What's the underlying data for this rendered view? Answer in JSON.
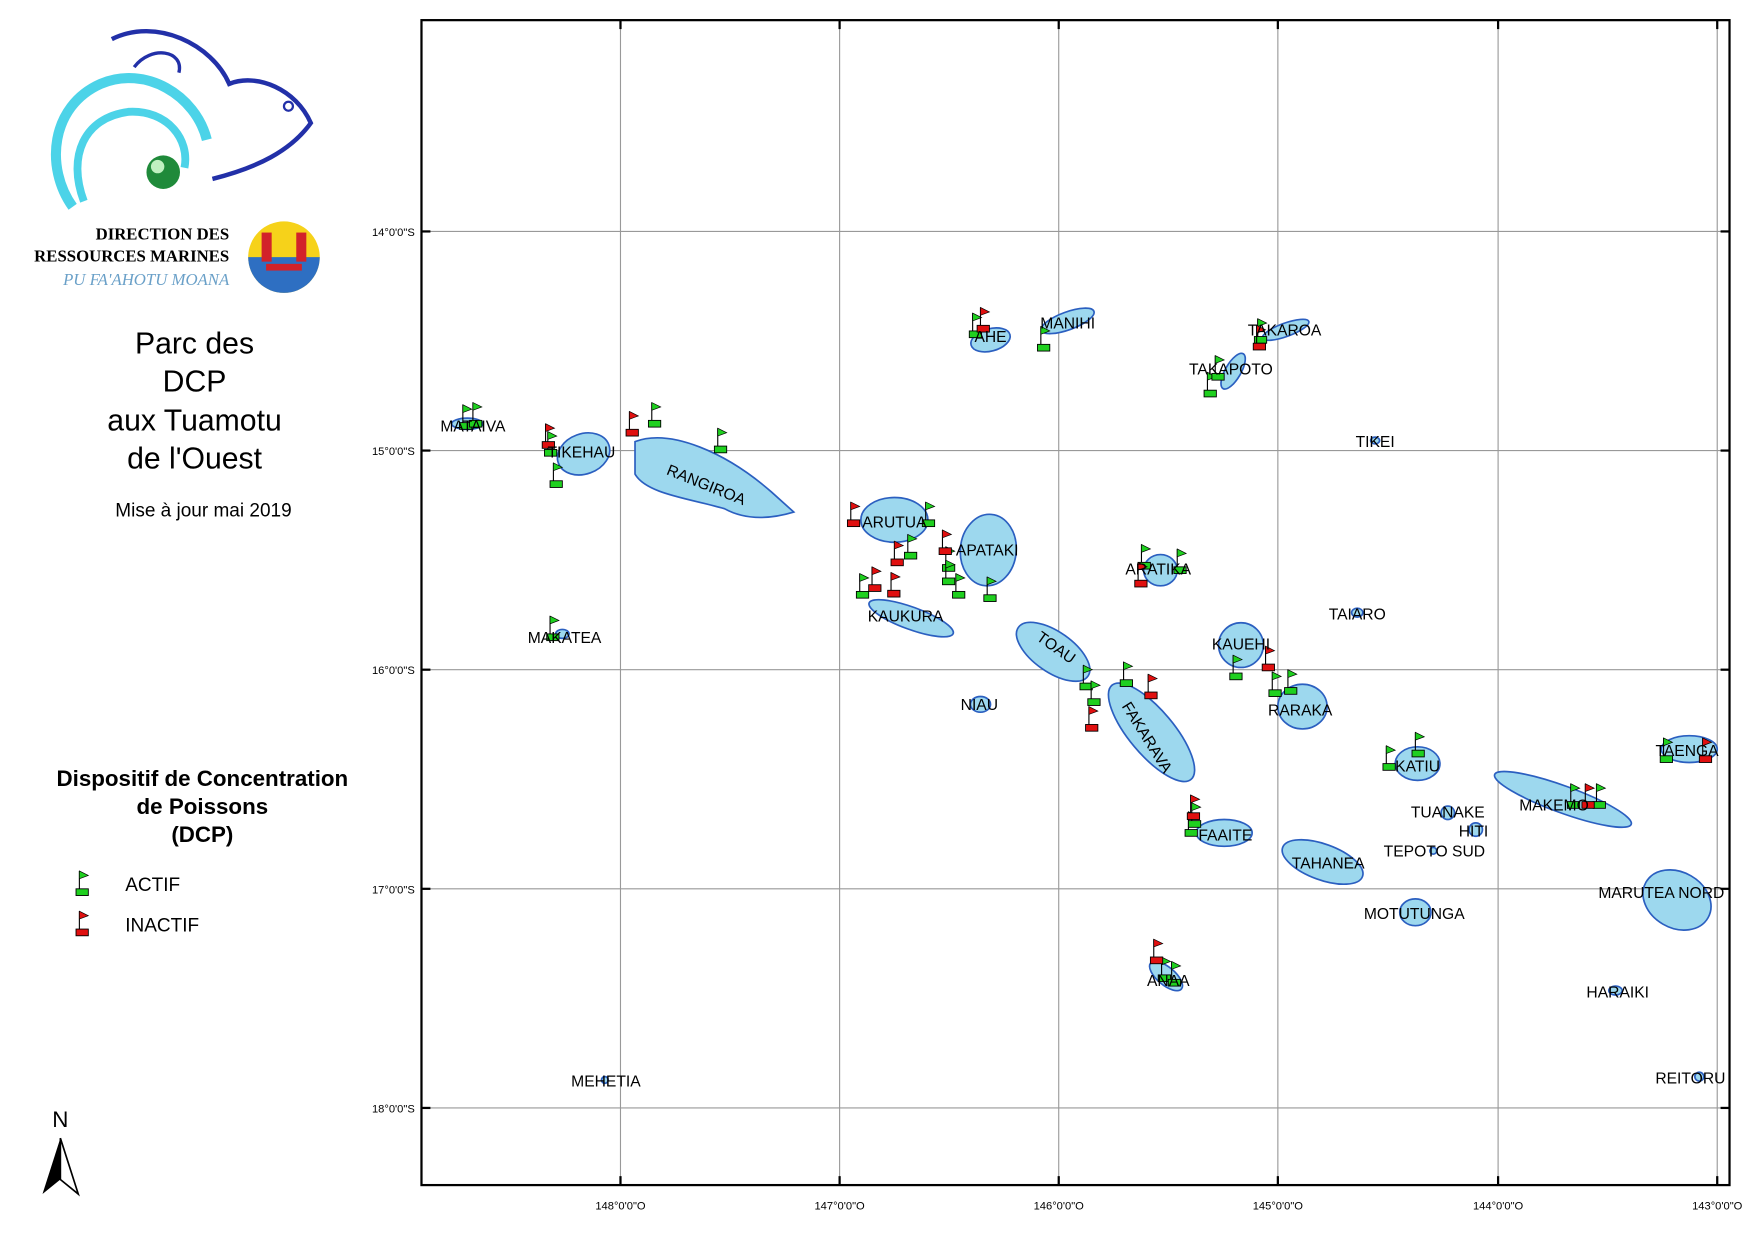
{
  "logo": {
    "line1": "DIRECTION DES",
    "line2": "RESSOURCES MARINES",
    "motto": "PU FA'AHOTU MOANA"
  },
  "title": {
    "lines": [
      "Parc des",
      "DCP",
      "aux Tuamotu",
      "de l'Ouest"
    ]
  },
  "update": "Mise à jour mai 2019",
  "legend": {
    "title_lines": [
      "Dispositif de Concentration",
      "de Poissons",
      "(DCP)"
    ],
    "items": [
      "ACTIF",
      "INACTIF"
    ]
  },
  "north": "N",
  "map": {
    "lon_labels": [
      "148°0'0\"O",
      "147°0'0\"O",
      "146°0'0\"O",
      "145°0'0\"O",
      "144°0'0\"O",
      "143°0'0\"O"
    ],
    "lat_labels": [
      "14°0'0\"S",
      "15°0'0\"S",
      "16°0'0\"S",
      "17°0'0\"S",
      "18°0'0\"S"
    ],
    "islands": [
      "MATAIVA",
      "TIKEHAU",
      "RANGIROA",
      "MAKATEA",
      "MEHETIA",
      "AHE",
      "MANIHI",
      "TAKAROA",
      "TAKAPOTO",
      "TIKEI",
      "ARUTUA",
      "APATAKI",
      "KAUKURA",
      "ARATIKA",
      "TAIARO",
      "KAUEHI",
      "TOAU",
      "NIAU",
      "FAKARAVA",
      "RARAKA",
      "KATIU",
      "TAENGA",
      "MAKEMO",
      "TUANAKE",
      "HITI",
      "FAAITE",
      "TEPOTO SUD",
      "TAHANEA",
      "MARUTEA NORD",
      "MOTUTUNGA",
      "ANAA",
      "HARAIKI",
      "REITORU"
    ]
  }
}
